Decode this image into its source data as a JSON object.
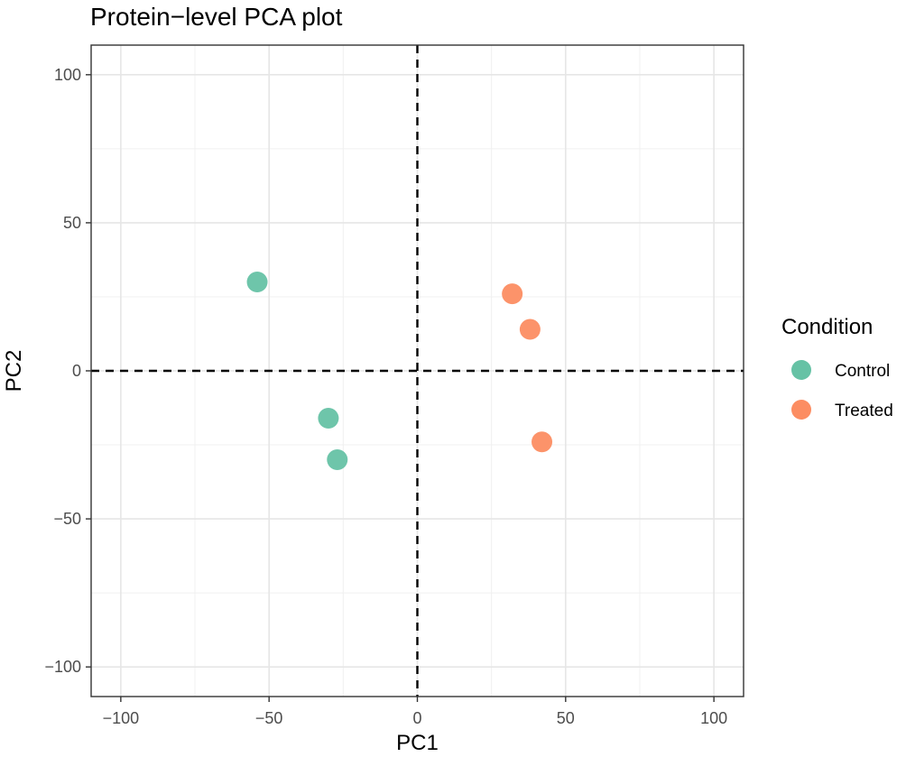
{
  "chart_data": {
    "type": "scatter",
    "title": "Protein−level PCA plot",
    "xlabel": "PC1",
    "ylabel": "PC2",
    "xlim": [
      -110,
      110
    ],
    "ylim": [
      -110,
      110
    ],
    "x_ticks": [
      -100,
      -50,
      0,
      50,
      100
    ],
    "y_ticks": [
      -100,
      -50,
      0,
      50,
      100
    ],
    "x_tick_labels": [
      "−100",
      "−50",
      "0",
      "50",
      "100"
    ],
    "y_tick_labels": [
      "−100",
      "−50",
      "0",
      "50",
      "100"
    ],
    "grid": true,
    "reference_lines": {
      "x": 0,
      "y": 0,
      "style": "dashed"
    },
    "legend": {
      "title": "Condition",
      "position": "right"
    },
    "series": [
      {
        "name": "Control",
        "color": "#66C2A5",
        "points": [
          {
            "x": -54,
            "y": 30
          },
          {
            "x": -30,
            "y": -16
          },
          {
            "x": -27,
            "y": -30
          }
        ]
      },
      {
        "name": "Treated",
        "color": "#FC8D62",
        "points": [
          {
            "x": 32,
            "y": 26
          },
          {
            "x": 38,
            "y": 14
          },
          {
            "x": 42,
            "y": -24
          }
        ]
      }
    ]
  }
}
